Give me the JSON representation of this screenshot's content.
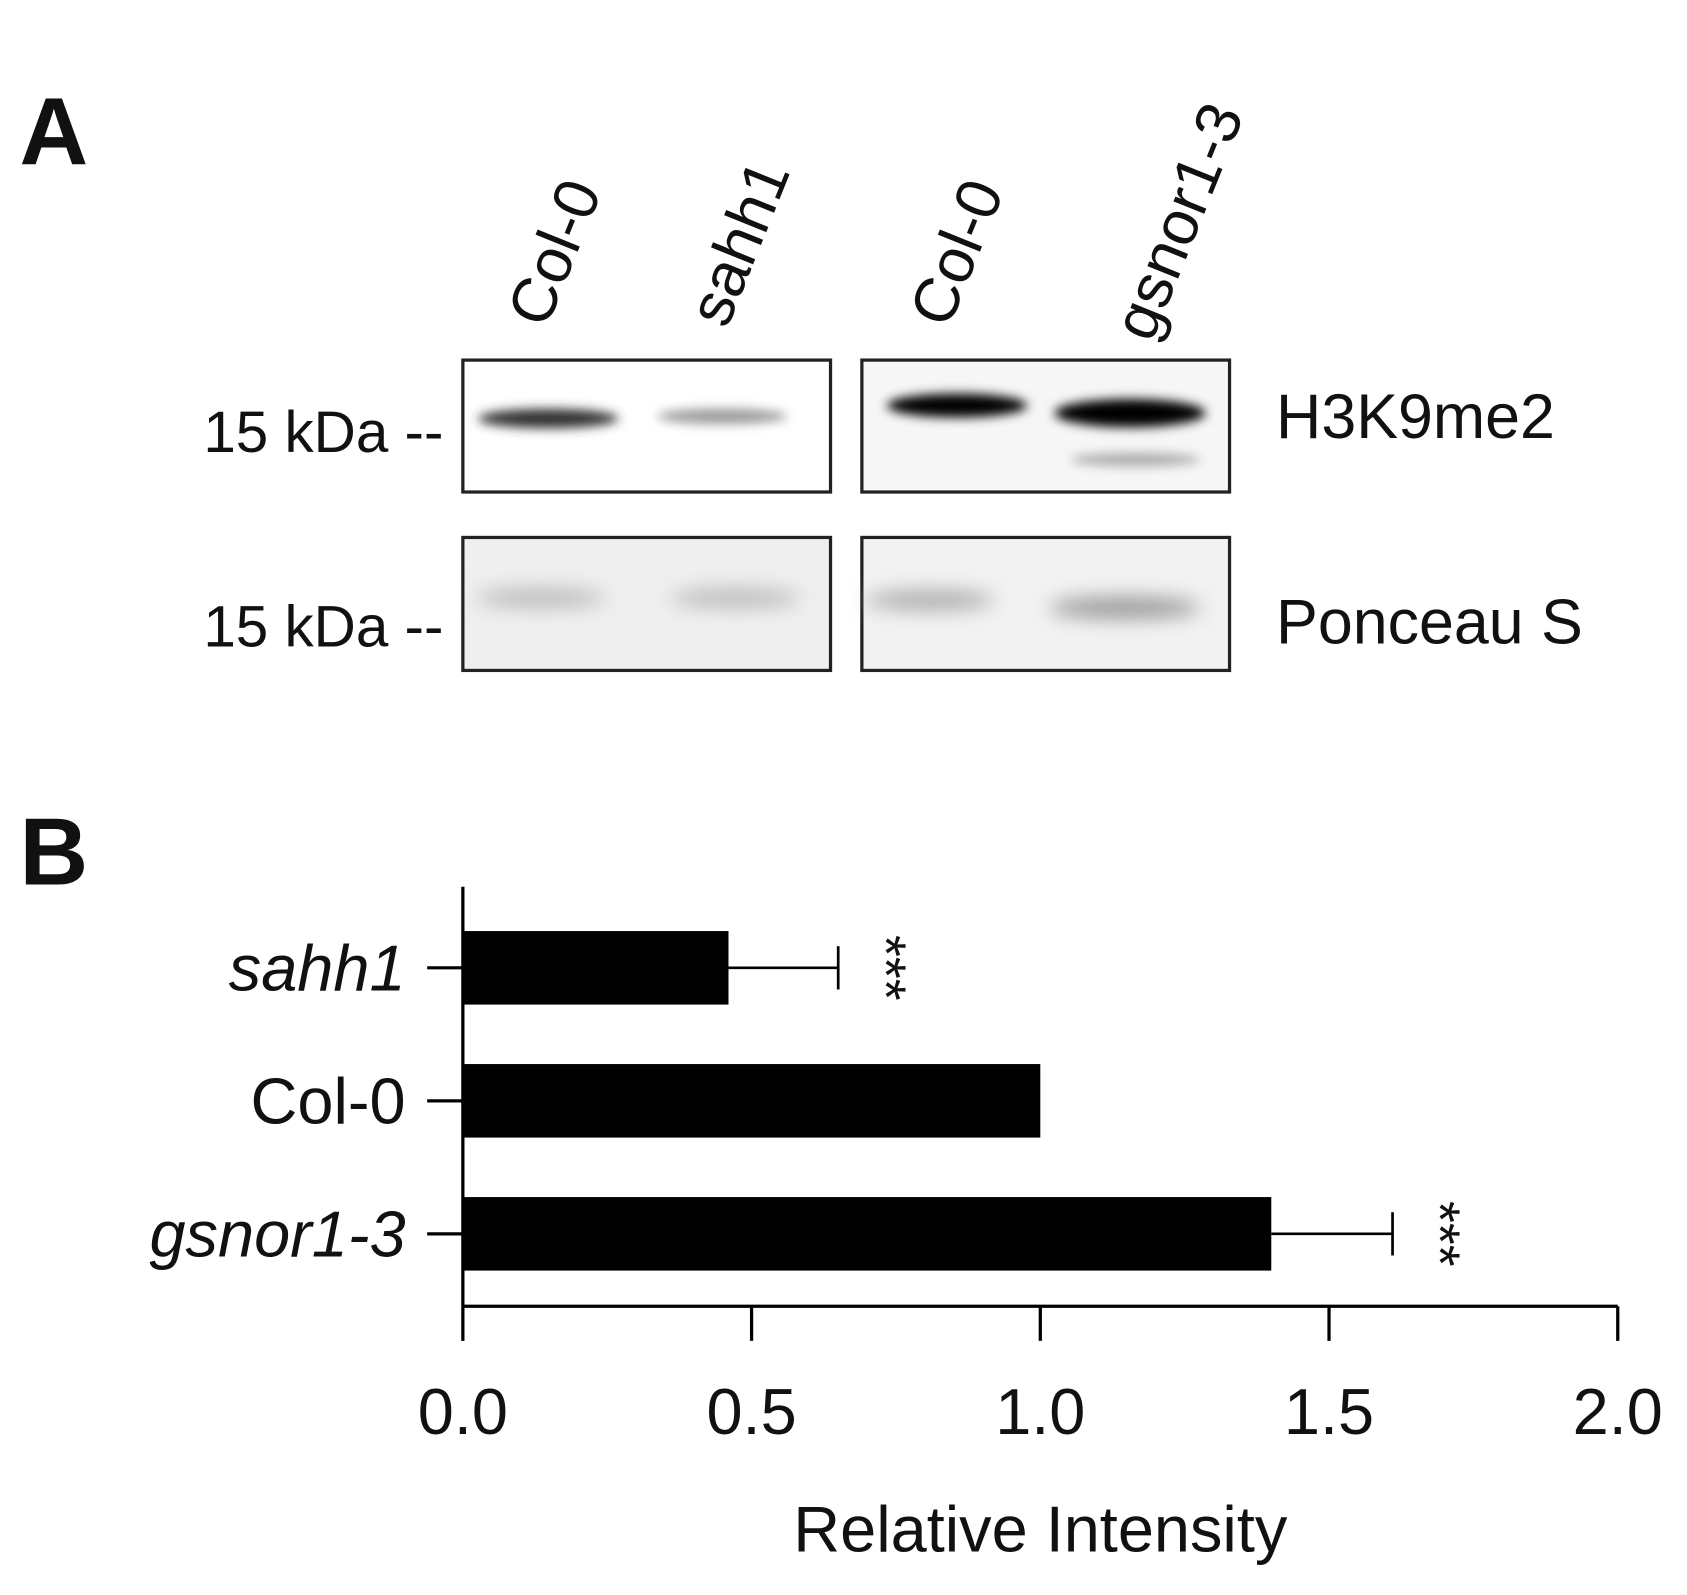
{
  "panel_a": {
    "label": "A",
    "lanes": [
      "Col-0",
      "sahh1",
      "Col-0",
      "gsnor1-3"
    ],
    "blots": [
      {
        "marker": "15 kDa --",
        "label": "H3K9me2"
      },
      {
        "marker": "15 kDa --",
        "label": "Ponceau S"
      }
    ]
  },
  "chart_data": {
    "type": "barh",
    "panel_label": "B",
    "x_label": "Relative Intensity",
    "categories": [
      "sahh1",
      "Col-0",
      "gsnor1-3"
    ],
    "values": [
      0.46,
      1.0,
      1.4
    ],
    "errors": [
      0.19,
      null,
      0.21
    ],
    "annotations": [
      "***",
      null,
      "***"
    ],
    "color": "#000000",
    "xlim": [
      0,
      2
    ],
    "xticks": [
      {
        "value": 0,
        "label": "0.0"
      },
      {
        "value": 0.5,
        "label": "0.5"
      },
      {
        "value": 1,
        "label": "1.0"
      },
      {
        "value": 1.5,
        "label": "1.5"
      },
      {
        "value": 2,
        "label": "2.0"
      }
    ]
  }
}
